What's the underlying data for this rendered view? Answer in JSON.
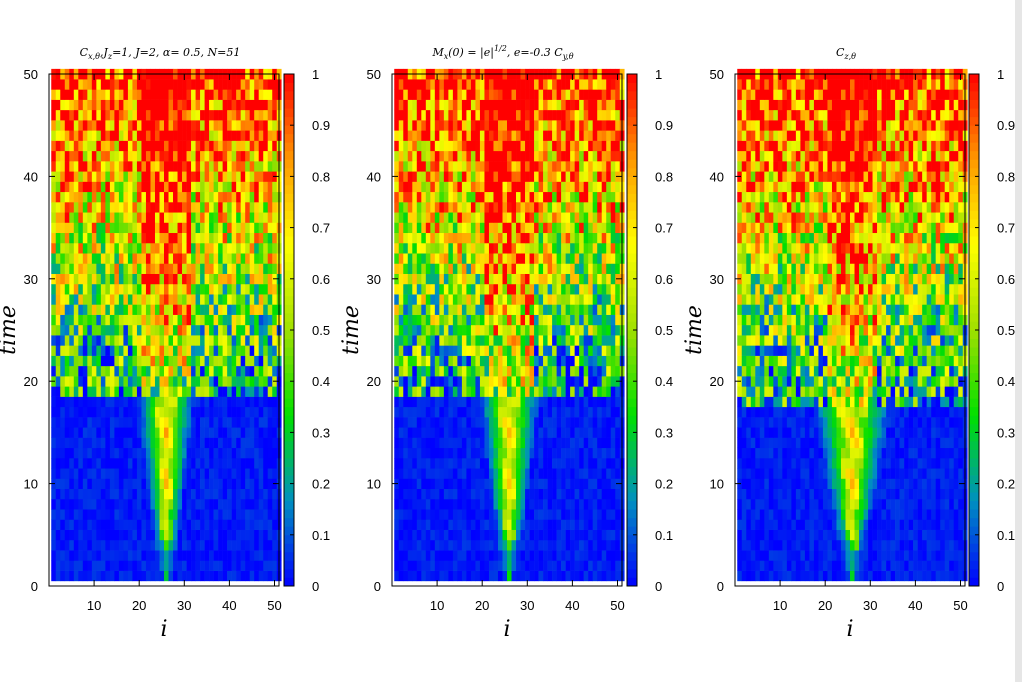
{
  "chart_data": [
    {
      "type": "heatmap",
      "title": "C_{x,θ},J_z=1,  J=2, α= 0.5, N=51",
      "title_parts": {
        "pre": "C",
        "sub": "x,θ",
        "post": ",J",
        "sub2": "z",
        "post2": "=1,  J=2, α= 0.5, N=51"
      },
      "xlabel": "i",
      "ylabel": "time",
      "xlim": [
        0,
        51
      ],
      "ylim": [
        0,
        50
      ],
      "xticks": [
        10,
        20,
        30,
        40,
        50
      ],
      "yticks": [
        0,
        10,
        20,
        30,
        40,
        50
      ],
      "colorbar": {
        "range": [
          0,
          1
        ],
        "ticks": [
          "0",
          "0.1",
          "0.2",
          "0.3",
          "0.4",
          "0.5",
          "0.6",
          "0.7",
          "0.8",
          "0.9",
          "1"
        ]
      },
      "grid": false,
      "pattern": {
        "center_i": 26,
        "front_speed": 0.28,
        "saturation_time": 19,
        "seed": 3
      }
    },
    {
      "type": "heatmap",
      "title": "M_x(0) = |e|^{1/2}, e=-0.3  C_{y,θ}",
      "title_parts": {
        "pre": "M",
        "sub": "x",
        "post": "(0) = |e|",
        "sup": "1/2",
        "post2": ", e=-0.3  C",
        "sub2": "y,θ"
      },
      "xlabel": "i",
      "ylabel": "time",
      "xlim": [
        0,
        51
      ],
      "ylim": [
        0,
        50
      ],
      "xticks": [
        10,
        20,
        30,
        40,
        50
      ],
      "yticks": [
        0,
        10,
        20,
        30,
        40,
        50
      ],
      "colorbar": {
        "range": [
          0,
          1
        ],
        "ticks": [
          "0",
          "0.1",
          "0.2",
          "0.3",
          "0.4",
          "0.5",
          "0.6",
          "0.7",
          "0.8",
          "0.9",
          "1"
        ]
      },
      "grid": false,
      "pattern": {
        "center_i": 26,
        "front_speed": 0.3,
        "saturation_time": 19,
        "seed": 7
      }
    },
    {
      "type": "heatmap",
      "title": "C_{z,θ}",
      "title_parts": {
        "pre": "C",
        "sub": "z,θ"
      },
      "xlabel": "i",
      "ylabel": "time",
      "xlim": [
        0,
        51
      ],
      "ylim": [
        0,
        50
      ],
      "xticks": [
        10,
        20,
        30,
        40,
        50
      ],
      "yticks": [
        0,
        10,
        20,
        30,
        40,
        50
      ],
      "colorbar": {
        "range": [
          0,
          1
        ],
        "ticks": [
          "0",
          "0.1",
          "0.2",
          "0.3",
          "0.4",
          "0.5",
          "0.6",
          "0.7",
          "0.8",
          "0.9",
          "1"
        ]
      },
      "grid": false,
      "pattern": {
        "center_i": 26,
        "front_speed": 0.42,
        "saturation_time": 18,
        "seed": 11
      }
    }
  ],
  "colors": {
    "palette_stops": [
      "#0000ff",
      "#0090c0",
      "#00e000",
      "#a0e000",
      "#ffff00",
      "#ff9900",
      "#ff0000"
    ],
    "background": "#ffffff",
    "window_edge": "#e6e6e6"
  }
}
